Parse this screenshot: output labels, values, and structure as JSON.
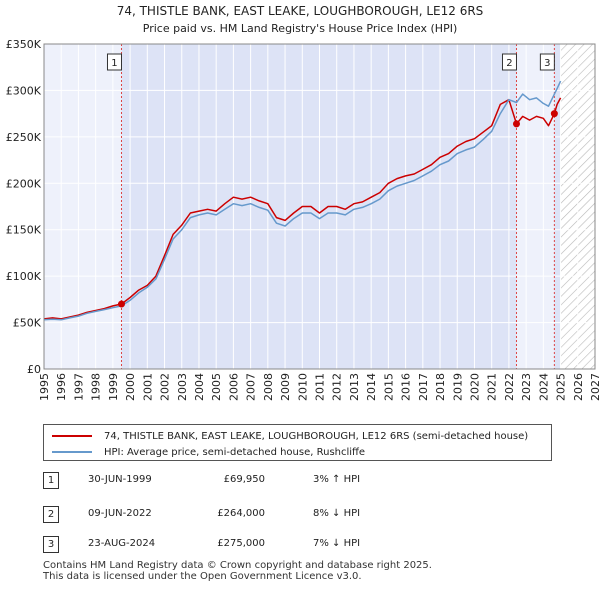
{
  "chart_data": {
    "type": "line",
    "title": "74, THISTLE BANK, EAST LEAKE, LOUGHBOROUGH, LE12 6RS",
    "subtitle": "Price paid vs. HM Land Registry's House Price Index (HPI)",
    "xlabel": "",
    "ylabel": "",
    "xlim": [
      1995,
      2027
    ],
    "ylim": [
      0,
      350000
    ],
    "y_ticks": [
      0,
      50000,
      100000,
      150000,
      200000,
      250000,
      300000,
      350000
    ],
    "y_tick_labels": [
      "£0",
      "£50K",
      "£100K",
      "£150K",
      "£200K",
      "£250K",
      "£300K",
      "£350K"
    ],
    "x_ticks": [
      1995,
      1996,
      1997,
      1998,
      1999,
      2000,
      2001,
      2002,
      2003,
      2004,
      2005,
      2006,
      2007,
      2008,
      2009,
      2010,
      2011,
      2012,
      2013,
      2014,
      2015,
      2016,
      2017,
      2018,
      2019,
      2020,
      2021,
      2022,
      2023,
      2024,
      2025,
      2026,
      2027
    ],
    "x_tick_labels": [
      "1995",
      "1996",
      "1997",
      "1998",
      "1999",
      "2000",
      "2001",
      "2002",
      "2003",
      "2004",
      "2005",
      "2006",
      "2007",
      "2008",
      "2009",
      "2010",
      "2011",
      "2012",
      "2013",
      "2014",
      "2015",
      "2016",
      "2017",
      "2018",
      "2019",
      "2020",
      "2021",
      "2022",
      "2023",
      "2024",
      "2025",
      "2026",
      "2027"
    ],
    "grid": true,
    "shaded_periods": [
      [
        1999.5,
        2022.44
      ],
      [
        2024.64,
        2025.0
      ]
    ],
    "forecast_start": 2025.0,
    "series": [
      {
        "name": "74, THISTLE BANK, EAST LEAKE, LOUGHBOROUGH, LE12 6RS (semi-detached house)",
        "color": "#cc0000",
        "x": [
          1995,
          1995.5,
          1996,
          1996.5,
          1997,
          1997.5,
          1998,
          1998.5,
          1999,
          1999.5,
          2000,
          2000.5,
          2001,
          2001.5,
          2002,
          2002.5,
          2003,
          2003.5,
          2004,
          2004.5,
          2005,
          2005.5,
          2006,
          2006.5,
          2007,
          2007.5,
          2008,
          2008.5,
          2009,
          2009.5,
          2010,
          2010.5,
          2011,
          2011.5,
          2012,
          2012.5,
          2013,
          2013.5,
          2014,
          2014.5,
          2015,
          2015.5,
          2016,
          2016.5,
          2017,
          2017.5,
          2018,
          2018.5,
          2019,
          2019.5,
          2020,
          2020.5,
          2021,
          2021.5,
          2022,
          2022.44,
          2022.8,
          2023.2,
          2023.6,
          2024,
          2024.3,
          2024.64,
          2024.8,
          2025
        ],
        "values": [
          54000,
          55000,
          54000,
          56000,
          58000,
          61000,
          63000,
          65000,
          68000,
          69950,
          77000,
          85000,
          90000,
          100000,
          122000,
          145000,
          155000,
          168000,
          170000,
          172000,
          170000,
          178000,
          185000,
          183000,
          185000,
          181000,
          178000,
          163000,
          160000,
          168000,
          175000,
          175000,
          168000,
          175000,
          175000,
          172000,
          178000,
          180000,
          185000,
          190000,
          200000,
          205000,
          208000,
          210000,
          215000,
          220000,
          228000,
          232000,
          240000,
          245000,
          248000,
          255000,
          262000,
          285000,
          290000,
          264000,
          272000,
          268000,
          272000,
          270000,
          262000,
          275000,
          285000,
          292000
        ]
      },
      {
        "name": "HPI: Average price, semi-detached house, Rushcliffe",
        "color": "#6699cc",
        "x": [
          1995,
          1995.5,
          1996,
          1996.5,
          1997,
          1997.5,
          1998,
          1998.5,
          1999,
          1999.5,
          2000,
          2000.5,
          2001,
          2001.5,
          2002,
          2002.5,
          2003,
          2003.5,
          2004,
          2004.5,
          2005,
          2005.5,
          2006,
          2006.5,
          2007,
          2007.5,
          2008,
          2008.5,
          2009,
          2009.5,
          2010,
          2010.5,
          2011,
          2011.5,
          2012,
          2012.5,
          2013,
          2013.5,
          2014,
          2014.5,
          2015,
          2015.5,
          2016,
          2016.5,
          2017,
          2017.5,
          2018,
          2018.5,
          2019,
          2019.5,
          2020,
          2020.5,
          2021,
          2021.5,
          2022,
          2022.44,
          2022.8,
          2023.2,
          2023.6,
          2024,
          2024.3,
          2024.64,
          2024.8,
          2025
        ],
        "values": [
          53000,
          53500,
          53000,
          55000,
          57000,
          60000,
          62000,
          64000,
          66000,
          68000,
          74000,
          82000,
          88000,
          97000,
          118000,
          140000,
          150000,
          163000,
          166000,
          168000,
          166000,
          172000,
          178000,
          176000,
          178000,
          174000,
          171000,
          157000,
          154000,
          162000,
          168000,
          168000,
          162000,
          168000,
          168000,
          166000,
          172000,
          174000,
          178000,
          183000,
          192000,
          197000,
          200000,
          203000,
          208000,
          213000,
          220000,
          224000,
          232000,
          236000,
          239000,
          247000,
          256000,
          275000,
          290000,
          287000,
          296000,
          290000,
          292000,
          286000,
          283000,
          296000,
          302000,
          310000
        ]
      }
    ],
    "annotations": [
      {
        "label": "1",
        "x": 1999.5,
        "value": 69950
      },
      {
        "label": "2",
        "x": 2022.44,
        "value": 264000
      },
      {
        "label": "3",
        "x": 2024.64,
        "value": 275000
      }
    ]
  },
  "legend": {
    "items": [
      {
        "label": "74, THISTLE BANK, EAST LEAKE, LOUGHBOROUGH, LE12 6RS (semi-detached house)",
        "color": "#cc0000"
      },
      {
        "label": "HPI: Average price, semi-detached house, Rushcliffe",
        "color": "#6699cc"
      }
    ]
  },
  "sales": [
    {
      "num": "1",
      "date": "30-JUN-1999",
      "price": "£69,950",
      "hpi": "3% ↑ HPI"
    },
    {
      "num": "2",
      "date": "09-JUN-2022",
      "price": "£264,000",
      "hpi": "8% ↓ HPI"
    },
    {
      "num": "3",
      "date": "23-AUG-2024",
      "price": "£275,000",
      "hpi": "7% ↓ HPI"
    }
  ],
  "footer": {
    "line1": "Contains HM Land Registry data © Crown copyright and database right 2025.",
    "line2": "This data is licensed under the Open Government Licence v3.0."
  }
}
